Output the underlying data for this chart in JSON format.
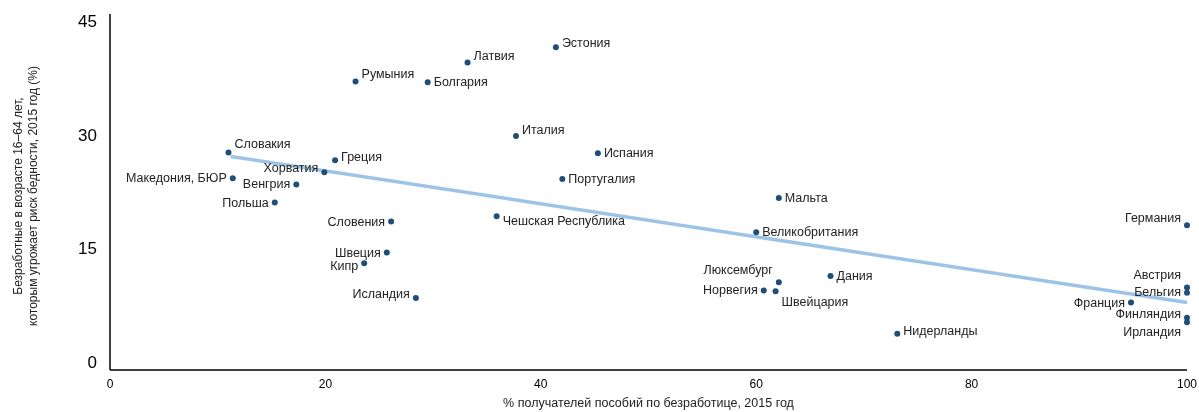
{
  "chart_data": {
    "type": "scatter",
    "xlabel": "% получателей пособий по безработице, 2015 год",
    "ylabel": "Безработные в возрасте 16–64 лет,\nкоторым угрожает риск бедности, 2015 год (%)",
    "xlim": [
      0,
      100
    ],
    "ylim": [
      -1,
      46
    ],
    "xticks": [
      0,
      20,
      40,
      60,
      80,
      100
    ],
    "yticks": [
      0,
      15,
      30,
      45
    ],
    "grid": false,
    "series": [
      {
        "marker": "circle",
        "color": "#1f4e79",
        "x": [
          11.0,
          11.4,
          17.3,
          15.3,
          19.9,
          20.9,
          22.8,
          29.5,
          33.2,
          41.4,
          37.7,
          45.3,
          42.0,
          62.1,
          26.1,
          35.9,
          25.7,
          23.6,
          28.4,
          60.0,
          62.1,
          60.7,
          61.8,
          66.9,
          73.1,
          100,
          100,
          100,
          94.8,
          100,
          100
        ],
        "values": [
          27.7,
          24.3,
          23.5,
          21.1,
          25.1,
          26.7,
          37.1,
          37.0,
          39.6,
          41.6,
          29.9,
          27.6,
          24.2,
          21.7,
          18.6,
          19.3,
          14.5,
          13.1,
          8.5,
          17.2,
          10.6,
          9.5,
          9.4,
          11.4,
          3.8,
          18.1,
          9.9,
          9.2,
          7.9,
          5.9,
          5.3
        ]
      },
      {
        "type": "line",
        "color": "#9dc3e6",
        "x": [
          11.2,
          100
        ],
        "values": [
          27.2,
          7.9
        ]
      }
    ],
    "annotations": [
      {
        "text": "Словакия",
        "x": 11.0,
        "y": 27.7
      },
      {
        "text": "Македония, БЮР",
        "x": 11.4,
        "y": 24.3
      },
      {
        "text": "Венгрия",
        "x": 17.3,
        "y": 23.5
      },
      {
        "text": "Польша",
        "x": 15.3,
        "y": 21.1
      },
      {
        "text": "Хорватия",
        "x": 19.9,
        "y": 25.1
      },
      {
        "text": "Греция",
        "x": 20.9,
        "y": 26.7
      },
      {
        "text": "Румыния",
        "x": 22.8,
        "y": 37.1
      },
      {
        "text": "Болгария",
        "x": 29.5,
        "y": 37.0
      },
      {
        "text": "Латвия",
        "x": 33.2,
        "y": 39.6
      },
      {
        "text": "Эстония",
        "x": 41.4,
        "y": 41.6
      },
      {
        "text": "Италия",
        "x": 37.7,
        "y": 29.9
      },
      {
        "text": "Испания",
        "x": 45.3,
        "y": 27.6
      },
      {
        "text": "Португалия",
        "x": 42.0,
        "y": 24.2
      },
      {
        "text": "Мальта",
        "x": 62.1,
        "y": 21.7
      },
      {
        "text": "Словения",
        "x": 26.1,
        "y": 18.6
      },
      {
        "text": "Чешская Республика",
        "x": 35.9,
        "y": 19.3
      },
      {
        "text": "Швеция",
        "x": 25.7,
        "y": 14.5
      },
      {
        "text": "Кипр",
        "x": 23.6,
        "y": 13.1
      },
      {
        "text": "Исландия",
        "x": 28.4,
        "y": 8.5
      },
      {
        "text": "Великобритания",
        "x": 60.0,
        "y": 17.2
      },
      {
        "text": "Люксембург",
        "x": 62.1,
        "y": 10.6
      },
      {
        "text": "Норвегия",
        "x": 60.7,
        "y": 9.5
      },
      {
        "text": "Швейцария",
        "x": 61.8,
        "y": 9.4
      },
      {
        "text": "Дания",
        "x": 66.9,
        "y": 11.4
      },
      {
        "text": "Нидерланды",
        "x": 73.1,
        "y": 3.8
      },
      {
        "text": "Германия",
        "x": 100,
        "y": 18.1
      },
      {
        "text": "Австрия",
        "x": 100,
        "y": 9.9
      },
      {
        "text": "Бельгия",
        "x": 100,
        "y": 9.2
      },
      {
        "text": "Франция",
        "x": 94.8,
        "y": 7.9
      },
      {
        "text": "Финляндия",
        "x": 100,
        "y": 5.9
      },
      {
        "text": "Ирландия",
        "x": 100,
        "y": 5.3
      }
    ]
  }
}
